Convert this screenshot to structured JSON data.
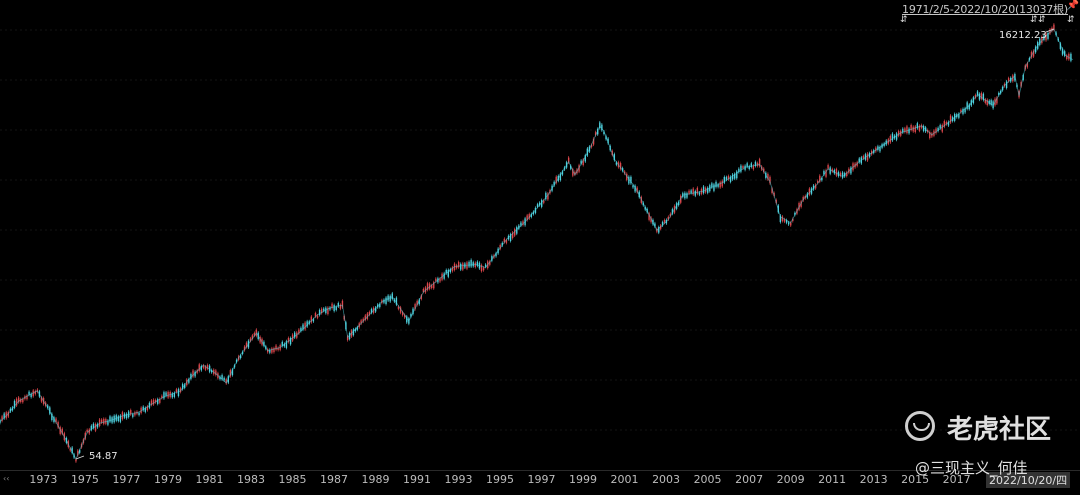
{
  "header": {
    "range_label": "1971/2/5-2022/10/20(13037根)",
    "pin_icon": "pin-icon"
  },
  "annotations": {
    "max_value_label": "16212.23",
    "min_value_label": "54.87",
    "end_date_label": "2022/10/20/四"
  },
  "watermark": {
    "site_name": "老虎社区",
    "author": "@三现主义_何佳",
    "logo_icon": "tiger-logo-icon"
  },
  "colors": {
    "background": "#000000",
    "up": "#4fd3e0",
    "down": "#e0474c"
  },
  "chart_data": {
    "type": "line",
    "title": "",
    "xlabel": "",
    "ylabel": "",
    "scale": "log",
    "date_range": [
      "1971-02-05",
      "2022-10-20"
    ],
    "bar_count": 13037,
    "max": {
      "date": "2021-11-19",
      "value": 16212.23
    },
    "min": {
      "date": "1974-10-03",
      "value": 54.87
    },
    "x_ticks": [
      "1973",
      "1975",
      "1977",
      "1979",
      "1981",
      "1983",
      "1985",
      "1987",
      "1989",
      "1991",
      "1993",
      "1995",
      "1997",
      "1999",
      "2001",
      "2003",
      "2005",
      "2007",
      "2009",
      "2011",
      "2013",
      "2015",
      "2017"
    ],
    "series": [
      {
        "x": [
          1971.1,
          1971.5,
          1972.0,
          1972.5,
          1972.9,
          1973.4,
          1973.9,
          1974.3,
          1974.76,
          1975.3,
          1975.9,
          1976.5,
          1977.0,
          1977.8,
          1978.5,
          1979.0,
          1979.8,
          1980.2,
          1980.9,
          1981.5,
          1982.0,
          1982.6,
          1983.45,
          1984.0,
          1984.6,
          1985.5,
          1986.4,
          1987.0,
          1987.6,
          1987.85,
          1988.5,
          1989.5,
          1990.0,
          1990.8,
          1991.5,
          1992.0,
          1993.0,
          1994.0,
          1994.5,
          1995.5,
          1996.5,
          1997.5,
          1998.5,
          1998.8,
          1999.5,
          2000.0,
          2000.2,
          2000.7,
          2001.2,
          2001.7,
          2002.0,
          2002.75,
          2003.3,
          2004.0,
          2005.0,
          2006.0,
          2007.0,
          2007.7,
          2008.2,
          2008.7,
          2009.2,
          2009.8,
          2010.5,
          2011.0,
          2011.7,
          2012.5,
          2013.5,
          2014.5,
          2015.5,
          2016.0,
          2016.8,
          2017.8,
          2018.2,
          2018.95,
          2019.5,
          2020.0,
          2020.2,
          2020.5,
          2021.0,
          2021.5,
          2021.88,
          2022.4,
          2022.8
        ],
        "values": [
          90,
          100,
          118,
          128,
          135,
          108,
          85,
          70,
          54.87,
          78,
          88,
          92,
          97,
          102,
          115,
          125,
          135,
          158,
          190,
          170,
          150,
          210,
          290,
          230,
          240,
          290,
          370,
          405,
          420,
          275,
          330,
          440,
          470,
          340,
          500,
          560,
          700,
          720,
          690,
          1000,
          1300,
          1800,
          2800,
          2350,
          3300,
          4500,
          4200,
          2900,
          2400,
          2000,
          1700,
          1130,
          1300,
          1800,
          1900,
          2150,
          2600,
          2700,
          2150,
          1350,
          1250,
          1700,
          2100,
          2550,
          2300,
          2800,
          3400,
          4100,
          4500,
          4000,
          4700,
          5900,
          6800,
          5900,
          7700,
          8700,
          6700,
          9800,
          12600,
          14800,
          16212.23,
          11500,
          10800
        ]
      }
    ]
  }
}
